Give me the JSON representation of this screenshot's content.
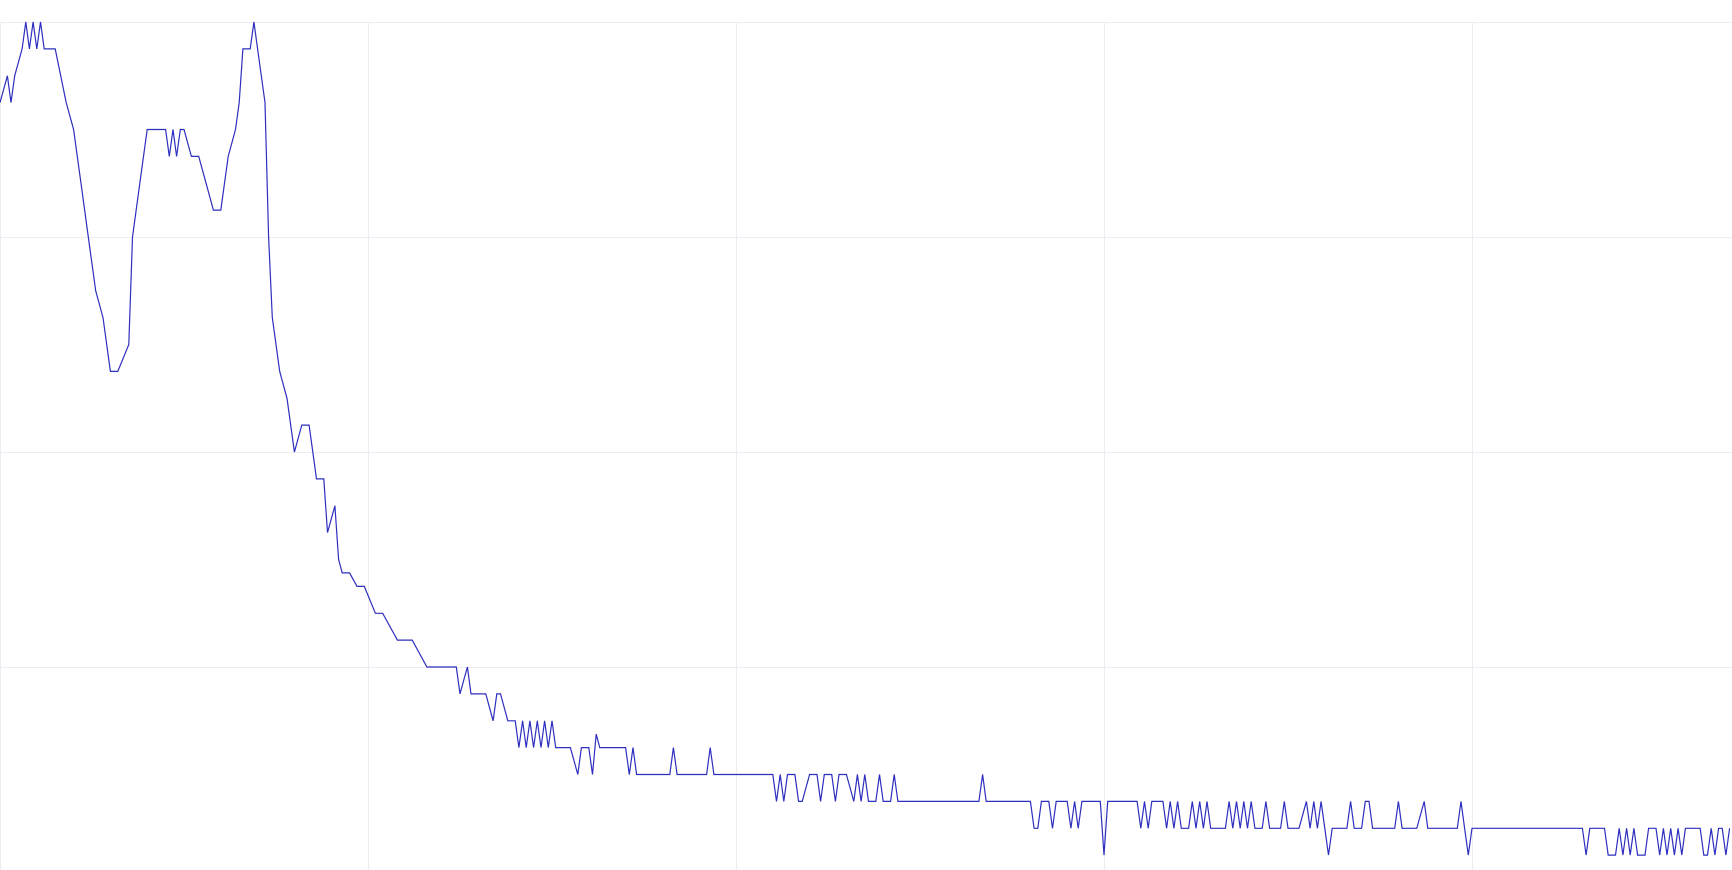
{
  "chart_data": {
    "type": "line",
    "title": "",
    "xlabel": "",
    "ylabel": "",
    "grid": true,
    "legend": "none",
    "line_color": "#2e2ebf",
    "grid_color": "#ececf2",
    "xlim": [
      0,
      470
    ],
    "ylim": [
      0,
      32
    ],
    "x_gridlines": [
      0,
      100,
      200,
      300,
      400
    ],
    "y_gridlines": [
      0,
      8,
      16,
      24,
      32
    ],
    "series": [
      {
        "points": [
          [
            0,
            29
          ],
          [
            2,
            30
          ],
          [
            3,
            29
          ],
          [
            4,
            30
          ],
          [
            6,
            31
          ],
          [
            7,
            32
          ],
          [
            8,
            31
          ],
          [
            9,
            32
          ],
          [
            10,
            31
          ],
          [
            11,
            32
          ],
          [
            12,
            31
          ],
          [
            15,
            31
          ],
          [
            18,
            29
          ],
          [
            20,
            28
          ],
          [
            22,
            26
          ],
          [
            24,
            24
          ],
          [
            26,
            22
          ],
          [
            28,
            21
          ],
          [
            30,
            19
          ],
          [
            32,
            19
          ],
          [
            35,
            20
          ],
          [
            36,
            24
          ],
          [
            38,
            26
          ],
          [
            40,
            28
          ],
          [
            42,
            28
          ],
          [
            45,
            28
          ],
          [
            46,
            27
          ],
          [
            47,
            28
          ],
          [
            48,
            27
          ],
          [
            49,
            28
          ],
          [
            50,
            28
          ],
          [
            52,
            27
          ],
          [
            54,
            27
          ],
          [
            56,
            26
          ],
          [
            58,
            25
          ],
          [
            60,
            25
          ],
          [
            62,
            27
          ],
          [
            64,
            28
          ],
          [
            65,
            29
          ],
          [
            66,
            31
          ],
          [
            68,
            31
          ],
          [
            69,
            32
          ],
          [
            70,
            31
          ],
          [
            71,
            30
          ],
          [
            72,
            29
          ],
          [
            73,
            24
          ],
          [
            74,
            21
          ],
          [
            76,
            19
          ],
          [
            78,
            18
          ],
          [
            80,
            16
          ],
          [
            82,
            17
          ],
          [
            84,
            17
          ],
          [
            85,
            16
          ],
          [
            86,
            15
          ],
          [
            88,
            15
          ],
          [
            89,
            13
          ],
          [
            90,
            13.5
          ],
          [
            91,
            14
          ],
          [
            92,
            12
          ],
          [
            93,
            11.5
          ],
          [
            95,
            11.5
          ],
          [
            97,
            11
          ],
          [
            99,
            11
          ],
          [
            102,
            10
          ],
          [
            104,
            10
          ],
          [
            108,
            9
          ],
          [
            112,
            9
          ],
          [
            116,
            8
          ],
          [
            120,
            8
          ],
          [
            124,
            8
          ],
          [
            125,
            7
          ],
          [
            126,
            7.5
          ],
          [
            127,
            8
          ],
          [
            128,
            7
          ],
          [
            130,
            7
          ],
          [
            132,
            7
          ],
          [
            134,
            6
          ],
          [
            135,
            7
          ],
          [
            136,
            7
          ],
          [
            138,
            6
          ],
          [
            140,
            6
          ],
          [
            141,
            5
          ],
          [
            142,
            6
          ],
          [
            143,
            5
          ],
          [
            144,
            6
          ],
          [
            145,
            5
          ],
          [
            146,
            6
          ],
          [
            147,
            5
          ],
          [
            148,
            6
          ],
          [
            149,
            5
          ],
          [
            150,
            6
          ],
          [
            151,
            5
          ],
          [
            153,
            5
          ],
          [
            155,
            5
          ],
          [
            157,
            4
          ],
          [
            158,
            5
          ],
          [
            160,
            5
          ],
          [
            161,
            4
          ],
          [
            162,
            5.5
          ],
          [
            163,
            5
          ],
          [
            166,
            5
          ],
          [
            170,
            5
          ],
          [
            171,
            4
          ],
          [
            172,
            5
          ],
          [
            173,
            4
          ],
          [
            175,
            4
          ],
          [
            178,
            4
          ],
          [
            182,
            4
          ],
          [
            183,
            5
          ],
          [
            184,
            4
          ],
          [
            187,
            4
          ],
          [
            190,
            4
          ],
          [
            192,
            4
          ],
          [
            193,
            5
          ],
          [
            194,
            4
          ],
          [
            198,
            4
          ],
          [
            202,
            4
          ],
          [
            206,
            4
          ],
          [
            210,
            4
          ],
          [
            211,
            3
          ],
          [
            212,
            4
          ],
          [
            213,
            3
          ],
          [
            214,
            4
          ],
          [
            216,
            4
          ],
          [
            217,
            3
          ],
          [
            218,
            3
          ],
          [
            220,
            4
          ],
          [
            222,
            4
          ],
          [
            223,
            3
          ],
          [
            224,
            4
          ],
          [
            226,
            4
          ],
          [
            227,
            3
          ],
          [
            228,
            4
          ],
          [
            230,
            4
          ],
          [
            232,
            3
          ],
          [
            233,
            4
          ],
          [
            234,
            3
          ],
          [
            235,
            4
          ],
          [
            236,
            3
          ],
          [
            238,
            3
          ],
          [
            239,
            4
          ],
          [
            240,
            3
          ],
          [
            242,
            3
          ],
          [
            243,
            4
          ],
          [
            244,
            3
          ],
          [
            246,
            3
          ],
          [
            252,
            3
          ],
          [
            262,
            3
          ],
          [
            266,
            3
          ],
          [
            267,
            4
          ],
          [
            268,
            3
          ],
          [
            272,
            3
          ],
          [
            276,
            3
          ],
          [
            280,
            3
          ],
          [
            281,
            2
          ],
          [
            282,
            2
          ],
          [
            283,
            3
          ],
          [
            285,
            3
          ],
          [
            286,
            2
          ],
          [
            287,
            3
          ],
          [
            290,
            3
          ],
          [
            291,
            2
          ],
          [
            292,
            3
          ],
          [
            293,
            2
          ],
          [
            294,
            3
          ],
          [
            297,
            3
          ],
          [
            299,
            3
          ],
          [
            300,
            1
          ],
          [
            301,
            3
          ],
          [
            305,
            3
          ],
          [
            309,
            3
          ],
          [
            310,
            2
          ],
          [
            311,
            3
          ],
          [
            312,
            2
          ],
          [
            313,
            3
          ],
          [
            316,
            3
          ],
          [
            317,
            2
          ],
          [
            318,
            3
          ],
          [
            319,
            2
          ],
          [
            320,
            3
          ],
          [
            321,
            2
          ],
          [
            323,
            2
          ],
          [
            324,
            3
          ],
          [
            325,
            2
          ],
          [
            326,
            3
          ],
          [
            327,
            2
          ],
          [
            328,
            3
          ],
          [
            329,
            2
          ],
          [
            333,
            2
          ],
          [
            334,
            3
          ],
          [
            335,
            2
          ],
          [
            336,
            3
          ],
          [
            337,
            2
          ],
          [
            338,
            3
          ],
          [
            339,
            2
          ],
          [
            340,
            3
          ],
          [
            341,
            2
          ],
          [
            343,
            2
          ],
          [
            344,
            3
          ],
          [
            345,
            2
          ],
          [
            348,
            2
          ],
          [
            349,
            3
          ],
          [
            350,
            2
          ],
          [
            353,
            2
          ],
          [
            355,
            3
          ],
          [
            356,
            2
          ],
          [
            357,
            3
          ],
          [
            358,
            2
          ],
          [
            359,
            3
          ],
          [
            360,
            2
          ],
          [
            361,
            1
          ],
          [
            362,
            2
          ],
          [
            366,
            2
          ],
          [
            367,
            3
          ],
          [
            368,
            2
          ],
          [
            370,
            2
          ],
          [
            371,
            3
          ],
          [
            372,
            3
          ],
          [
            373,
            2
          ],
          [
            375,
            2
          ],
          [
            379,
            2
          ],
          [
            380,
            3
          ],
          [
            381,
            2
          ],
          [
            385,
            2
          ],
          [
            387,
            3
          ],
          [
            388,
            2
          ],
          [
            394,
            2
          ],
          [
            396,
            2
          ],
          [
            397,
            3
          ],
          [
            398,
            2
          ],
          [
            399,
            1
          ],
          [
            400,
            2
          ],
          [
            404,
            2
          ],
          [
            410,
            2
          ],
          [
            420,
            2
          ],
          [
            430,
            2
          ],
          [
            431,
            1
          ],
          [
            432,
            2
          ],
          [
            436,
            2
          ],
          [
            437,
            1
          ],
          [
            439,
            1
          ],
          [
            440,
            2
          ],
          [
            441,
            1
          ],
          [
            442,
            2
          ],
          [
            443,
            1
          ],
          [
            444,
            2
          ],
          [
            445,
            1
          ],
          [
            447,
            1
          ],
          [
            448,
            2
          ],
          [
            449,
            2
          ],
          [
            450,
            2
          ],
          [
            451,
            1
          ],
          [
            452,
            2
          ],
          [
            453,
            1
          ],
          [
            454,
            2
          ],
          [
            455,
            1
          ],
          [
            456,
            2
          ],
          [
            457,
            1
          ],
          [
            458,
            2
          ],
          [
            460,
            2
          ],
          [
            462,
            2
          ],
          [
            463,
            1
          ],
          [
            464,
            1
          ],
          [
            465,
            2
          ],
          [
            466,
            1
          ],
          [
            467,
            2
          ],
          [
            468,
            2
          ],
          [
            469,
            1
          ],
          [
            470,
            2
          ]
        ]
      }
    ]
  }
}
